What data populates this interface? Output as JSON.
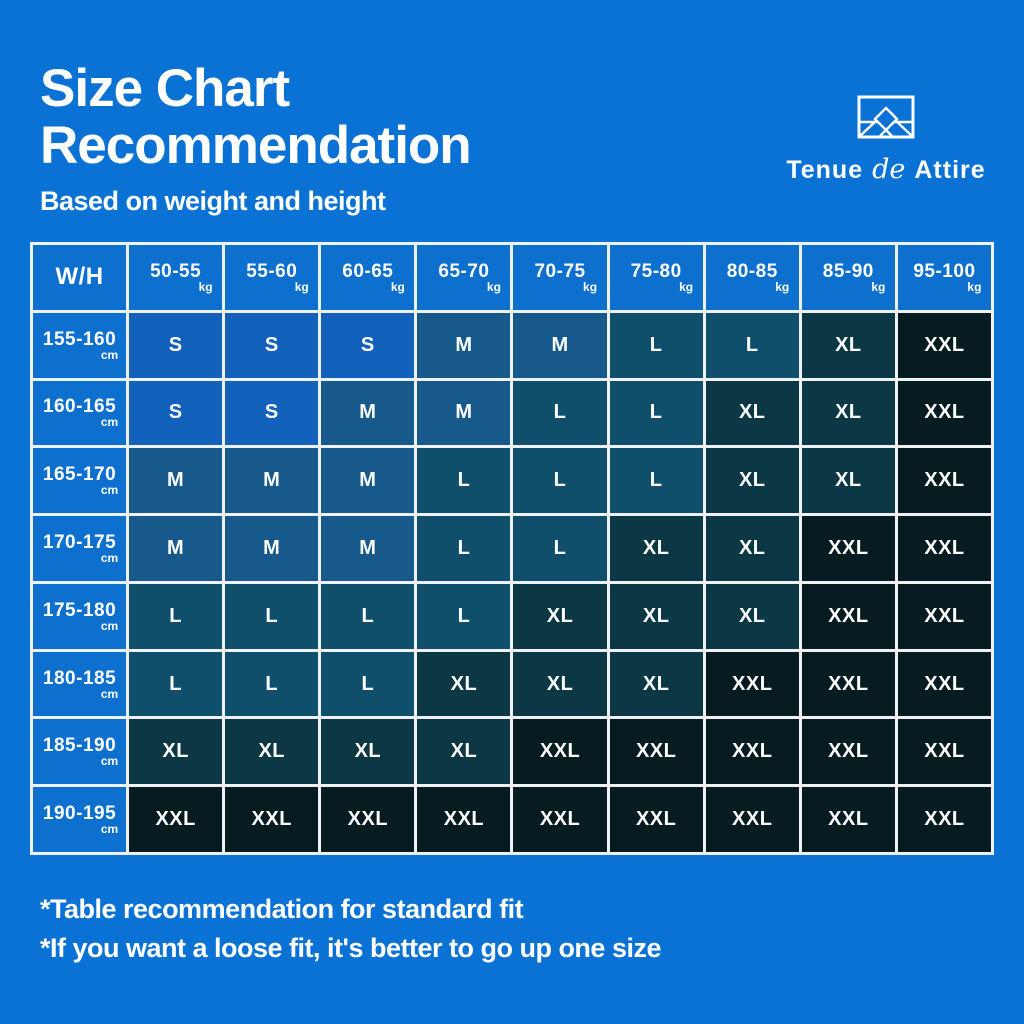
{
  "page": {
    "background_color": "#0a72d4",
    "text_color": "#ffffff"
  },
  "header": {
    "title_line1": "Size Chart",
    "title_line2": "Recommendation",
    "subtitle": "Based on weight and height"
  },
  "brand": {
    "logo_icon": "mountain-diamond-frame-icon",
    "name_part1": "Tenue",
    "name_part2": "de",
    "name_part3": "Attire"
  },
  "chart_data": {
    "type": "table",
    "title": "Size Chart Recommendation",
    "subtitle": "Based on weight and height",
    "corner_label": "W/H",
    "weight_unit": "kg",
    "height_unit": "cm",
    "weight_columns_kg": [
      "50-55",
      "55-60",
      "60-65",
      "65-70",
      "70-75",
      "75-80",
      "80-85",
      "85-90",
      "95-100"
    ],
    "height_rows_cm": [
      "155-160",
      "160-165",
      "165-170",
      "170-175",
      "175-180",
      "180-185",
      "185-190",
      "190-195"
    ],
    "matrix": [
      [
        "S",
        "S",
        "S",
        "M",
        "M",
        "L",
        "L",
        "XL",
        "XXL"
      ],
      [
        "S",
        "S",
        "M",
        "M",
        "L",
        "L",
        "XL",
        "XL",
        "XXL"
      ],
      [
        "M",
        "M",
        "M",
        "L",
        "L",
        "L",
        "XL",
        "XL",
        "XXL"
      ],
      [
        "M",
        "M",
        "M",
        "L",
        "L",
        "XL",
        "XL",
        "XXL",
        "XXL"
      ],
      [
        "L",
        "L",
        "L",
        "L",
        "XL",
        "XL",
        "XL",
        "XXL",
        "XXL"
      ],
      [
        "L",
        "L",
        "L",
        "XL",
        "XL",
        "XL",
        "XXL",
        "XXL",
        "XXL"
      ],
      [
        "XL",
        "XL",
        "XL",
        "XL",
        "XXL",
        "XXL",
        "XXL",
        "XXL",
        "XXL"
      ],
      [
        "XXL",
        "XXL",
        "XXL",
        "XXL",
        "XXL",
        "XXL",
        "XXL",
        "XXL",
        "XXL"
      ]
    ],
    "size_colors": {
      "S": "#1261ba",
      "M": "#16598a",
      "L": "#104f6c",
      "XL": "#0c3845",
      "XXL": "#071c21"
    },
    "header_cell_color": "#0d70cf",
    "grid_line_color": "#eef2f5"
  },
  "footnotes": {
    "line1": "*Table recommendation for standard fit",
    "line2": "*If you want a loose fit, it's better to go up one size"
  }
}
